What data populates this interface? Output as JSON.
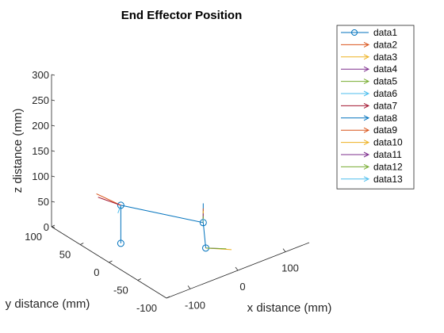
{
  "chart_data": {
    "type": "line3d",
    "title": "End Effector Position",
    "xlabel": "x distance (mm)",
    "ylabel": "y distance (mm)",
    "zlabel": "z distance (mm)",
    "xlim": [
      -150,
      150
    ],
    "ylim": [
      -100,
      100
    ],
    "zlim": [
      0,
      300
    ],
    "x_ticks": [
      "-100",
      "0",
      "100"
    ],
    "y_ticks": [
      "-100",
      "-50",
      "0",
      "50",
      "100"
    ],
    "z_ticks": [
      "0",
      "50",
      "100",
      "150",
      "200",
      "250",
      "300"
    ],
    "legend_position": "top-right",
    "series": [
      {
        "name": "data1",
        "color": "#0072BD",
        "marker": "circle",
        "points": [
          [
            -95,
            25,
            0
          ],
          [
            -95,
            25,
            75
          ],
          [
            42,
            -5,
            12
          ],
          [
            5,
            -40,
            0
          ]
        ]
      },
      {
        "name": "data2",
        "color": "#D95319",
        "marker": "arrow",
        "from": [
          -95,
          25,
          75
        ],
        "to": [
          -110,
          55,
          82
        ]
      },
      {
        "name": "data3",
        "color": "#EDB120",
        "marker": "arrow",
        "from": [
          5,
          -40,
          0
        ],
        "to": [
          35,
          -60,
          0
        ]
      },
      {
        "name": "data4",
        "color": "#7E2F8E",
        "marker": "arrow",
        "from": [
          5,
          -40,
          0
        ],
        "to": [
          25,
          -52,
          0
        ]
      },
      {
        "name": "data5",
        "color": "#77AC30",
        "marker": "arrow",
        "from": [
          5,
          -40,
          0
        ],
        "to": [
          30,
          -55,
          0
        ]
      },
      {
        "name": "data6",
        "color": "#4DBEEE",
        "marker": "arrow",
        "from": [
          -95,
          25,
          75
        ],
        "to": [
          -112,
          16,
          72
        ]
      },
      {
        "name": "data7",
        "color": "#A2142F",
        "marker": "arrow",
        "from": [
          -95,
          25,
          75
        ],
        "to": [
          -115,
          48,
          82
        ]
      },
      {
        "name": "data8",
        "color": "#0072BD",
        "marker": "arrow",
        "from": [
          42,
          -5,
          12
        ],
        "to": [
          42,
          -5,
          50
        ]
      },
      {
        "name": "data9",
        "color": "#D95319",
        "marker": "arrow",
        "from": [
          42,
          -5,
          12
        ],
        "to": [
          42,
          -5,
          40
        ]
      },
      {
        "name": "data10",
        "color": "#EDB120",
        "marker": "arrow",
        "from": [
          42,
          -5,
          12
        ],
        "to": [
          42,
          -5,
          35
        ]
      },
      {
        "name": "data11",
        "color": "#7E2F8E",
        "marker": "arrow",
        "from": [
          42,
          -5,
          12
        ],
        "to": [
          42,
          -5,
          30
        ]
      },
      {
        "name": "data12",
        "color": "#77AC30",
        "marker": "arrow",
        "from": [
          42,
          -5,
          12
        ],
        "to": [
          42,
          -5,
          25
        ]
      },
      {
        "name": "data13",
        "color": "#4DBEEE",
        "marker": "arrow",
        "from": [
          42,
          -5,
          12
        ],
        "to": [
          42,
          -5,
          20
        ]
      }
    ]
  }
}
